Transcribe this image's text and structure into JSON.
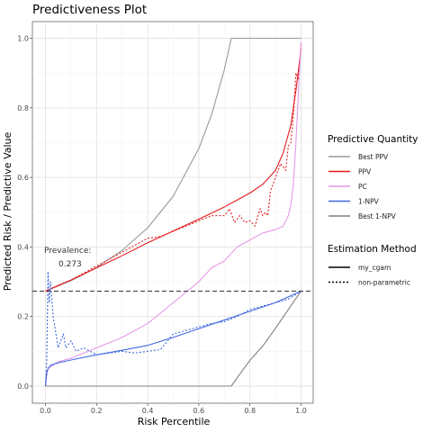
{
  "chart_data": {
    "type": "line",
    "title": "Predictiveness Plot",
    "xlabel": "Risk Percentile",
    "ylabel": "Predicted Risk / Predictive Value",
    "xlim": [
      0.0,
      1.0
    ],
    "ylim": [
      0.0,
      1.0
    ],
    "x_ticks": [
      0.0,
      0.2,
      0.4,
      0.6,
      0.8,
      1.0
    ],
    "x_tick_labels": [
      "0.0",
      "0.2",
      "0.4",
      "0.6",
      "0.8",
      "1.0"
    ],
    "y_ticks": [
      0.0,
      0.2,
      0.4,
      0.6,
      0.8,
      1.0
    ],
    "y_tick_labels": [
      "0.0",
      "0.2",
      "0.4",
      "0.6",
      "0.8",
      "1.0"
    ],
    "grid": true,
    "prevalence": 0.273,
    "annotation": {
      "label": "Prevalence:",
      "value": "0.273"
    },
    "legend": {
      "placement": "right",
      "title_quantity": "Predictive Quantity",
      "title_method": "Estimation Method",
      "quantity_entries": [
        {
          "name": "Best PPV",
          "color": "#999999"
        },
        {
          "name": "PPV",
          "color": "#e41a1c"
        },
        {
          "name": "PC",
          "color": "#e699e6"
        },
        {
          "name": "1-NPV",
          "color": "#4169e1"
        },
        {
          "name": "Best 1-NPV",
          "color": "#808080"
        }
      ],
      "method_entries": [
        {
          "name": "my_cgam",
          "dash": "solid"
        },
        {
          "name": "non-parametric",
          "dash": "dotted"
        }
      ]
    },
    "series": [
      {
        "name": "Best PPV",
        "method": "my_cgam",
        "color": "#999999",
        "x": [
          0.0,
          0.1,
          0.2,
          0.3,
          0.4,
          0.5,
          0.6,
          0.65,
          0.7,
          0.727,
          1.0
        ],
        "y": [
          0.273,
          0.303,
          0.341,
          0.39,
          0.455,
          0.546,
          0.683,
          0.78,
          0.91,
          1.0,
          1.0
        ]
      },
      {
        "name": "PPV",
        "method": "my_cgam",
        "color": "#e41a1c",
        "x": [
          0.0,
          0.1,
          0.2,
          0.3,
          0.4,
          0.5,
          0.6,
          0.7,
          0.8,
          0.85,
          0.9,
          0.93,
          0.96,
          0.98,
          0.99,
          1.0
        ],
        "y": [
          0.273,
          0.305,
          0.34,
          0.375,
          0.412,
          0.446,
          0.48,
          0.515,
          0.555,
          0.58,
          0.62,
          0.67,
          0.75,
          0.85,
          0.91,
          0.97
        ]
      },
      {
        "name": "PPV",
        "method": "non-parametric",
        "color": "#e41a1c",
        "x": [
          0.0,
          0.05,
          0.1,
          0.2,
          0.3,
          0.4,
          0.45,
          0.5,
          0.55,
          0.6,
          0.65,
          0.7,
          0.72,
          0.74,
          0.76,
          0.78,
          0.8,
          0.82,
          0.84,
          0.85,
          0.86,
          0.87,
          0.88,
          0.9,
          0.92,
          0.94,
          0.95,
          0.96,
          0.97,
          0.98,
          0.99,
          1.0
        ],
        "y": [
          0.273,
          0.29,
          0.305,
          0.345,
          0.385,
          0.425,
          0.43,
          0.445,
          0.46,
          0.475,
          0.49,
          0.49,
          0.51,
          0.47,
          0.49,
          0.47,
          0.475,
          0.46,
          0.51,
          0.49,
          0.5,
          0.49,
          0.56,
          0.6,
          0.64,
          0.62,
          0.69,
          0.7,
          0.78,
          0.9,
          0.88,
          0.98
        ]
      },
      {
        "name": "PC",
        "method": "my_cgam",
        "color": "#e699e6",
        "x": [
          0.0,
          0.005,
          0.01,
          0.03,
          0.05,
          0.1,
          0.2,
          0.3,
          0.4,
          0.5,
          0.55,
          0.6,
          0.65,
          0.7,
          0.75,
          0.8,
          0.85,
          0.9,
          0.93,
          0.95,
          0.96,
          0.97,
          0.98,
          0.99,
          1.0
        ],
        "y": [
          0.0,
          0.03,
          0.05,
          0.06,
          0.07,
          0.08,
          0.11,
          0.14,
          0.18,
          0.24,
          0.27,
          0.3,
          0.34,
          0.36,
          0.4,
          0.42,
          0.44,
          0.45,
          0.46,
          0.49,
          0.52,
          0.58,
          0.7,
          0.85,
          0.99
        ]
      },
      {
        "name": "1-NPV",
        "method": "my_cgam",
        "color": "#4169e1",
        "x": [
          0.0,
          0.005,
          0.01,
          0.02,
          0.05,
          0.1,
          0.2,
          0.3,
          0.4,
          0.5,
          0.6,
          0.7,
          0.8,
          0.9,
          1.0
        ],
        "y": [
          0.0,
          0.04,
          0.05,
          0.06,
          0.067,
          0.075,
          0.09,
          0.103,
          0.117,
          0.14,
          0.165,
          0.19,
          0.215,
          0.24,
          0.273
        ]
      },
      {
        "name": "1-NPV",
        "method": "non-parametric",
        "color": "#4169e1",
        "x": [
          0.0,
          0.005,
          0.01,
          0.015,
          0.02,
          0.03,
          0.05,
          0.07,
          0.08,
          0.1,
          0.12,
          0.15,
          0.2,
          0.25,
          0.3,
          0.35,
          0.4,
          0.45,
          0.5,
          0.55,
          0.6,
          0.65,
          0.7,
          0.75,
          0.8,
          0.85,
          0.9,
          0.95,
          1.0
        ],
        "y": [
          0.0,
          0.07,
          0.33,
          0.24,
          0.3,
          0.2,
          0.11,
          0.15,
          0.11,
          0.13,
          0.1,
          0.11,
          0.09,
          0.095,
          0.1,
          0.095,
          0.1,
          0.105,
          0.15,
          0.16,
          0.17,
          0.18,
          0.185,
          0.2,
          0.22,
          0.23,
          0.24,
          0.25,
          0.273
        ]
      },
      {
        "name": "Best 1-NPV",
        "method": "my_cgam",
        "color": "#808080",
        "x": [
          0.0,
          0.727,
          0.75,
          0.8,
          0.85,
          0.9,
          0.95,
          1.0
        ],
        "y": [
          0.0,
          0.0,
          0.024,
          0.074,
          0.115,
          0.166,
          0.22,
          0.273
        ]
      }
    ]
  }
}
